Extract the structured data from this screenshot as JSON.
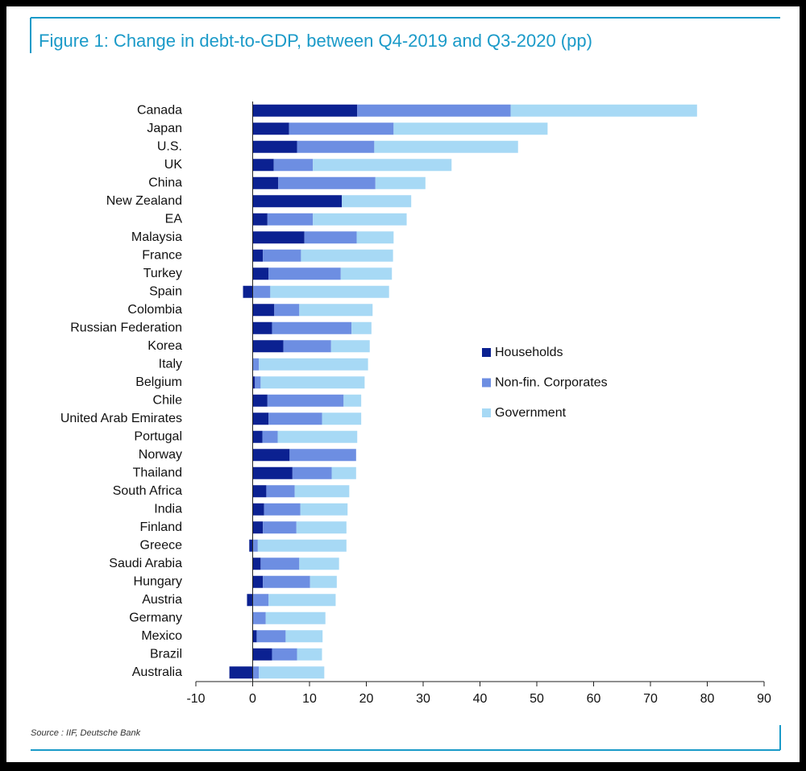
{
  "chart_data": {
    "type": "stacked_bar_horizontal",
    "title": "Figure 1: Change in debt-to-GDP, between Q4-2019 and Q3-2020 (pp)",
    "source": "Source : IIF, Deutsche Bank",
    "categories": [
      "Canada",
      "Japan",
      "U.S.",
      "UK",
      "China",
      "New Zealand",
      "EA",
      "Malaysia",
      "France",
      "Turkey",
      "Spain",
      "Colombia",
      "Russian Federation",
      "Korea",
      "Italy",
      "Belgium",
      "Chile",
      "United Arab Emirates",
      "Portugal",
      "Norway",
      "Thailand",
      "South Africa",
      "India",
      "Finland",
      "Greece",
      "Saudi Arabia",
      "Hungary",
      "Austria",
      "Germany",
      "Mexico",
      "Brazil",
      "Australia"
    ],
    "series": [
      {
        "name": "Households",
        "color": "#0b2191",
        "values": [
          18.4,
          6.4,
          7.8,
          3.7,
          4.5,
          15.7,
          2.6,
          9.1,
          1.8,
          2.8,
          -1.7,
          3.8,
          3.4,
          5.4,
          0,
          0.4,
          2.6,
          2.8,
          1.7,
          6.5,
          7.0,
          2.4,
          2.0,
          1.8,
          -0.6,
          1.4,
          1.8,
          -1.0,
          0,
          0.7,
          3.4,
          -4.1
        ]
      },
      {
        "name": "Non-fin. Corporates",
        "color": "#6d8ee2",
        "values": [
          27.0,
          18.4,
          13.6,
          6.9,
          17.1,
          0,
          8.0,
          9.2,
          6.7,
          12.7,
          3.1,
          4.4,
          14.0,
          8.4,
          1.1,
          1.0,
          13.4,
          9.4,
          2.7,
          11.7,
          6.9,
          5.0,
          6.4,
          5.9,
          0.9,
          6.8,
          8.3,
          2.8,
          2.3,
          5.1,
          4.4,
          1.1
        ]
      },
      {
        "name": "Government",
        "color": "#a7d9f5",
        "values": [
          32.8,
          27.1,
          25.3,
          24.4,
          8.8,
          12.2,
          16.5,
          6.5,
          16.2,
          9.0,
          20.9,
          12.9,
          3.5,
          6.8,
          19.2,
          18.3,
          3.1,
          6.9,
          14.0,
          0,
          4.3,
          9.6,
          8.3,
          8.8,
          15.6,
          7.0,
          4.7,
          11.8,
          10.5,
          6.5,
          4.4,
          11.5
        ]
      }
    ],
    "xlim": [
      -10,
      90
    ],
    "xticks": [
      -10,
      0,
      10,
      20,
      30,
      40,
      50,
      60,
      70,
      80,
      90
    ],
    "legend_position": "right",
    "grid": false
  }
}
